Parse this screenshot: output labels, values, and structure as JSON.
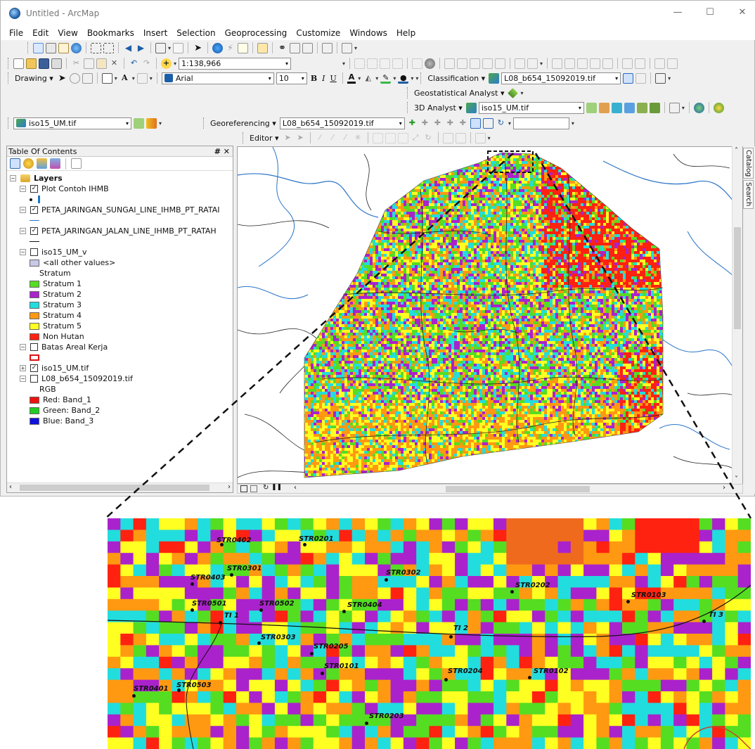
{
  "window": {
    "title": "Untitled - ArcMap",
    "controls": [
      "—",
      "☐",
      "✕"
    ]
  },
  "menu": [
    "File",
    "Edit",
    "View",
    "Bookmarks",
    "Insert",
    "Selection",
    "Geoprocessing",
    "Customize",
    "Windows",
    "Help"
  ],
  "standard_toolbar": {
    "scale": "1:138,966"
  },
  "drawing_toolbar": {
    "drawing_label": "Drawing ▾",
    "font": "Arial",
    "font_size": "10",
    "bold": "B",
    "italic": "I",
    "underline": "U",
    "text_color": "A"
  },
  "classification_toolbar": {
    "label": "Classification ▾",
    "layer": "L08_b654_15092019.tif"
  },
  "geostatistical_toolbar": {
    "label": "Geostatistical Analyst ▾"
  },
  "analyst3d_toolbar": {
    "label": "3D Analyst ▾",
    "layer": "iso15_UM.tif"
  },
  "image_toolbar": {
    "layer": "iso15_UM.tif"
  },
  "georef_toolbar": {
    "label": "Georeferencing ▾",
    "layer": "L08_b654_15092019.tif"
  },
  "editor_toolbar": {
    "label": "Editor ▾"
  },
  "toc": {
    "title": "Table Of Contents",
    "pin": "# ✕",
    "rows": [
      {
        "indent": 0,
        "expander": "−",
        "checkbox": "",
        "icon": "layers",
        "label": "Layers",
        "bold": true
      },
      {
        "indent": 1,
        "expander": "−",
        "checkbox": "✓",
        "label": "Plot Contoh IHMB"
      },
      {
        "indent": 2,
        "symbol": "point",
        "label": ""
      },
      {
        "indent": 1,
        "expander": "−",
        "checkbox": "✓",
        "label": "PETA_JARINGAN_SUNGAI_LINE_IHMB_PT_RATAI"
      },
      {
        "indent": 2,
        "symbol": "blue-line",
        "label": ""
      },
      {
        "indent": 1,
        "expander": "−",
        "checkbox": "✓",
        "label": "PETA_JARINGAN_JALAN_LINE_IHMB_PT_RATAH"
      },
      {
        "indent": 2,
        "symbol": "black-line",
        "label": ""
      },
      {
        "indent": 1,
        "expander": "−",
        "checkbox": "☐",
        "label": "iso15_UM_v"
      },
      {
        "indent": 2,
        "swatch": "#c8c8e8",
        "label": "<all other values>"
      },
      {
        "indent": 3,
        "label": "Stratum"
      },
      {
        "indent": 2,
        "swatch": "#55dd22",
        "label": "Stratum 1"
      },
      {
        "indent": 2,
        "swatch": "#aa22cc",
        "label": "Stratum 2"
      },
      {
        "indent": 2,
        "swatch": "#22dddd",
        "label": "Stratum 3"
      },
      {
        "indent": 2,
        "swatch": "#ff9911",
        "label": "Stratum 4"
      },
      {
        "indent": 2,
        "swatch": "#ffff22",
        "label": "Stratum 5"
      },
      {
        "indent": 2,
        "swatch": "#ff2211",
        "label": "Non Hutan"
      },
      {
        "indent": 1,
        "expander": "−",
        "checkbox": "☐",
        "label": "Batas Areal Kerja"
      },
      {
        "indent": 2,
        "symbol": "red-box",
        "label": ""
      },
      {
        "indent": 1,
        "expander": "+",
        "checkbox": "✓",
        "label": "iso15_UM.tif"
      },
      {
        "indent": 1,
        "expander": "−",
        "checkbox": "☐",
        "label": "L08_b654_15092019.tif"
      },
      {
        "indent": 3,
        "label": "RGB"
      },
      {
        "indent": 2,
        "swatch": "#ee1111",
        "label": "Red:   Band_1"
      },
      {
        "indent": 2,
        "swatch": "#22cc22",
        "label": "Green: Band_2"
      },
      {
        "indent": 2,
        "swatch": "#1111dd",
        "label": "Blue:  Band_3"
      }
    ]
  },
  "side_tabs": [
    "Catalog",
    "Search"
  ],
  "inset": {
    "plots": [
      {
        "label": "STR0402"
      },
      {
        "label": "STR0201"
      },
      {
        "label": "STR0301"
      },
      {
        "label": "STR0403"
      },
      {
        "label": "STR0302"
      },
      {
        "label": "STR0202"
      },
      {
        "label": "STR0103"
      },
      {
        "label": "STR0501"
      },
      {
        "label": "STR0502"
      },
      {
        "label": "STR0404"
      },
      {
        "label": "TI 1"
      },
      {
        "label": "TI 2"
      },
      {
        "label": "TI 3"
      },
      {
        "label": "STR0303"
      },
      {
        "label": "STR0205"
      },
      {
        "label": "STR0101"
      },
      {
        "label": "STR0204"
      },
      {
        "label": "STR0102"
      },
      {
        "label": "STR0401"
      },
      {
        "label": "STR0503"
      },
      {
        "label": "STR0203"
      }
    ]
  },
  "colors": {
    "stratum1": "#55dd22",
    "stratum2": "#aa22cc",
    "stratum3": "#22dddd",
    "stratum4": "#ff9911",
    "stratum5": "#ffff22",
    "non_hutan": "#ff2211"
  }
}
